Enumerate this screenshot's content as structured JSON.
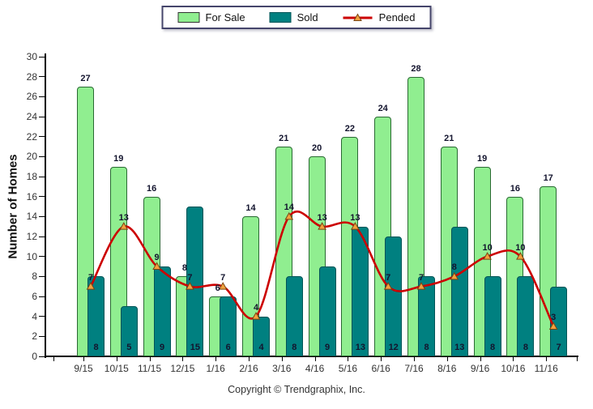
{
  "legend": {
    "for_sale": "For Sale",
    "sold": "Sold",
    "pended": "Pended"
  },
  "chart_data": {
    "type": "bar+line",
    "categories": [
      "9/15",
      "10/15",
      "11/15",
      "12/15",
      "1/16",
      "2/16",
      "3/16",
      "4/16",
      "5/16",
      "6/16",
      "7/16",
      "8/16",
      "9/16",
      "10/16",
      "11/16"
    ],
    "series": [
      {
        "name": "For Sale",
        "type": "bar",
        "color": "#90ee90",
        "border_color": "#2a6a33",
        "values": [
          27,
          19,
          16,
          8,
          6,
          14,
          21,
          20,
          22,
          24,
          28,
          21,
          19,
          16,
          17
        ]
      },
      {
        "name": "Sold",
        "type": "bar",
        "color": "#008080",
        "border_color": "#015457",
        "values": [
          8,
          5,
          9,
          15,
          6,
          4,
          8,
          9,
          13,
          12,
          8,
          13,
          8,
          8,
          7
        ]
      },
      {
        "name": "Pended",
        "type": "line",
        "color": "#cc0000",
        "marker_fill": "#f2a13e",
        "marker_stroke": "#7a4512",
        "values": [
          7,
          13,
          9,
          7,
          7,
          4,
          14,
          13,
          13,
          7,
          7,
          8,
          10,
          10,
          3
        ]
      }
    ],
    "title": "",
    "xlabel": "",
    "ylabel": "Number of Homes",
    "ylim": [
      0,
      30
    ],
    "ytick_step": 2,
    "grid": false,
    "legend_position": "top-center"
  },
  "footer": {
    "copyright": "Copyright © Trendgraphix, Inc."
  }
}
